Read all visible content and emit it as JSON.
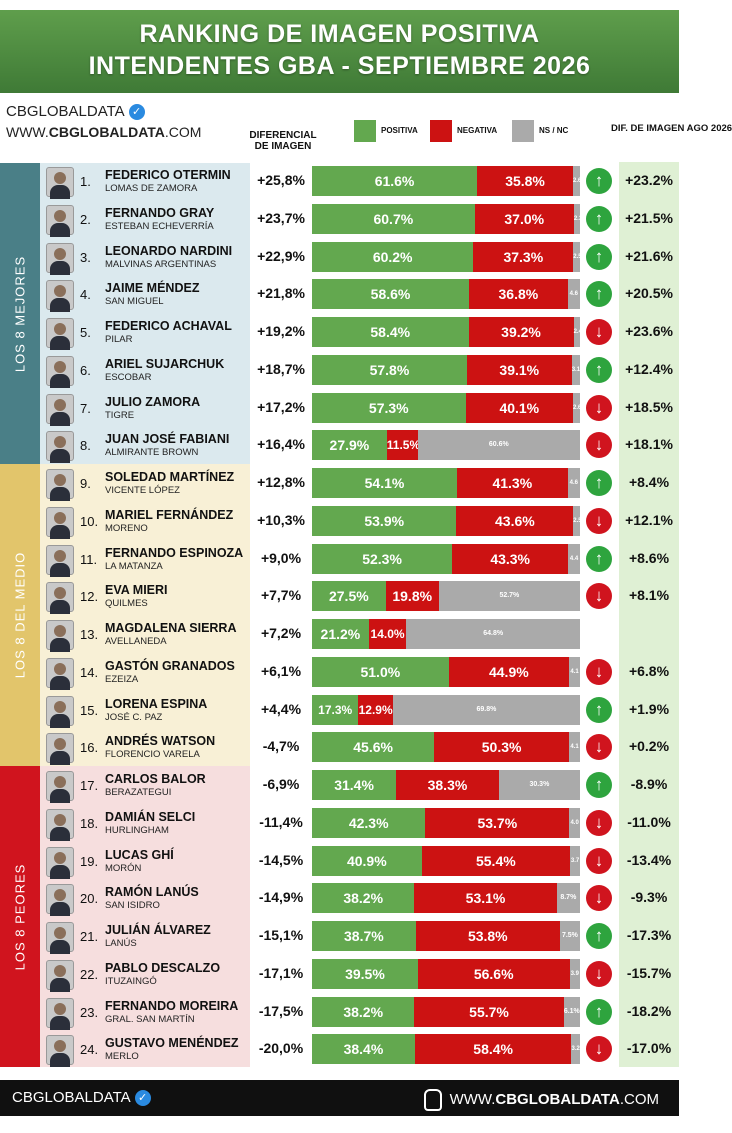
{
  "header": {
    "line1": "RANKING DE IMAGEN POSITIVA",
    "line2": "INTENDENTES GBA - SEPTIEMBRE 2026"
  },
  "brand": {
    "name": "CBGLOBALDATA",
    "url_prefix": "WWW.",
    "url_bold": "CBGLOBALDATA",
    "url_suffix": ".COM",
    "verified_icon": "verified-badge-icon"
  },
  "columns": {
    "diferencial": "DIFERENCIAL DE IMAGEN",
    "legend_pos": "POSITIVA",
    "legend_neg": "NEGATIVA",
    "legend_ns": "NS / NC",
    "dif_agosto": "DIF. DE IMAGEN AGO 2026"
  },
  "colors": {
    "positive": "#63a84f",
    "negative": "#cc1212",
    "ns": "#aaaaaa",
    "up": "#2ea43e",
    "down": "#d0141e",
    "group1": "#4a7f87",
    "group2": "#e2c56b",
    "group3": "#d0141e"
  },
  "groups": [
    "LOS 8 MEJORES",
    "LOS 8 DEL MEDIO",
    "LOS 8 PEORES"
  ],
  "chart_data": {
    "type": "bar",
    "stacked": true,
    "orientation": "horizontal",
    "title": "RANKING DE IMAGEN POSITIVA INTENDENTES GBA - SEPTIEMBRE 2026",
    "series_names": [
      "POSITIVA",
      "NEGATIVA",
      "NS / NC"
    ],
    "rows": [
      {
        "rank": "1.",
        "name": "FEDERICO OTERMIN",
        "muni": "LOMAS DE ZAMORA",
        "diff": "+25,8%",
        "pos": 61.6,
        "neg": 35.8,
        "ns": 2.6,
        "pos_label": "61.6%",
        "neg_label": "35.8%",
        "ns_label": "2.6",
        "arrow": "up",
        "prev": "+23.2%"
      },
      {
        "rank": "2.",
        "name": "FERNANDO GRAY",
        "muni": "ESTEBAN ECHEVERRÍA",
        "diff": "+23,7%",
        "pos": 60.7,
        "neg": 37.0,
        "ns": 2.3,
        "pos_label": "60.7%",
        "neg_label": "37.0%",
        "ns_label": "2.3",
        "arrow": "up",
        "prev": "+21.5%"
      },
      {
        "rank": "3.",
        "name": "LEONARDO NARDINI",
        "muni": "MALVINAS ARGENTINAS",
        "diff": "+22,9%",
        "pos": 60.2,
        "neg": 37.3,
        "ns": 2.5,
        "pos_label": "60.2%",
        "neg_label": "37.3%",
        "ns_label": "2.5",
        "arrow": "up",
        "prev": "+21.6%"
      },
      {
        "rank": "4.",
        "name": "JAIME MÉNDEZ",
        "muni": "SAN MIGUEL",
        "diff": "+21,8%",
        "pos": 58.6,
        "neg": 36.8,
        "ns": 4.6,
        "pos_label": "58.6%",
        "neg_label": "36.8%",
        "ns_label": "4.6",
        "arrow": "up",
        "prev": "+20.5%"
      },
      {
        "rank": "5.",
        "name": "FEDERICO ACHAVAL",
        "muni": "PILAR",
        "diff": "+19,2%",
        "pos": 58.4,
        "neg": 39.2,
        "ns": 2.4,
        "pos_label": "58.4%",
        "neg_label": "39.2%",
        "ns_label": "2.4",
        "arrow": "down",
        "prev": "+23.6%"
      },
      {
        "rank": "6.",
        "name": "ARIEL SUJARCHUK",
        "muni": "ESCOBAR",
        "diff": "+18,7%",
        "pos": 57.8,
        "neg": 39.1,
        "ns": 3.1,
        "pos_label": "57.8%",
        "neg_label": "39.1%",
        "ns_label": "3.1",
        "arrow": "up",
        "prev": "+12.4%"
      },
      {
        "rank": "7.",
        "name": "JULIO ZAMORA",
        "muni": "TIGRE",
        "diff": "+17,2%",
        "pos": 57.3,
        "neg": 40.1,
        "ns": 2.6,
        "pos_label": "57.3%",
        "neg_label": "40.1%",
        "ns_label": "2.6",
        "arrow": "down",
        "prev": "+18.5%"
      },
      {
        "rank": "8.",
        "name": "JUAN JOSÉ FABIANI",
        "muni": "ALMIRANTE BROWN",
        "diff": "+16,4%",
        "pos": 27.9,
        "neg": 11.5,
        "ns": 60.6,
        "pos_label": "27.9%",
        "neg_label": "11.5%",
        "ns_label": "60.6%",
        "arrow": "down",
        "prev": "+18.1%"
      },
      {
        "rank": "9.",
        "name": "SOLEDAD MARTÍNEZ",
        "muni": "VICENTE LÓPEZ",
        "diff": "+12,8%",
        "pos": 54.1,
        "neg": 41.3,
        "ns": 4.6,
        "pos_label": "54.1%",
        "neg_label": "41.3%",
        "ns_label": "4.6",
        "arrow": "up",
        "prev": "+8.4%"
      },
      {
        "rank": "10.",
        "name": "MARIEL FERNÁNDEZ",
        "muni": "MORENO",
        "diff": "+10,3%",
        "pos": 53.9,
        "neg": 43.6,
        "ns": 2.5,
        "pos_label": "53.9%",
        "neg_label": "43.6%",
        "ns_label": "2.5",
        "arrow": "down",
        "prev": "+12.1%"
      },
      {
        "rank": "11.",
        "name": "FERNANDO ESPINOZA",
        "muni": "LA MATANZA",
        "diff": "+9,0%",
        "pos": 52.3,
        "neg": 43.3,
        "ns": 4.4,
        "pos_label": "52.3%",
        "neg_label": "43.3%",
        "ns_label": "4.4",
        "arrow": "up",
        "prev": "+8.6%"
      },
      {
        "rank": "12.",
        "name": "EVA MIERI",
        "muni": "QUILMES",
        "diff": "+7,7%",
        "pos": 27.5,
        "neg": 19.8,
        "ns": 52.7,
        "pos_label": "27.5%",
        "neg_label": "19.8%",
        "ns_label": "52.7%",
        "arrow": "down",
        "prev": "+8.1%"
      },
      {
        "rank": "13.",
        "name": "MAGDALENA SIERRA",
        "muni": "AVELLANEDA",
        "diff": "+7,2%",
        "pos": 21.2,
        "neg": 14.0,
        "ns": 64.8,
        "pos_label": "21.2%",
        "neg_label": "14.0%",
        "ns_label": "64.8%",
        "arrow": "",
        "prev": ""
      },
      {
        "rank": "14.",
        "name": "GASTÓN GRANADOS",
        "muni": "EZEIZA",
        "diff": "+6,1%",
        "pos": 51.0,
        "neg": 44.9,
        "ns": 4.1,
        "pos_label": "51.0%",
        "neg_label": "44.9%",
        "ns_label": "4.1",
        "arrow": "down",
        "prev": "+6.8%"
      },
      {
        "rank": "15.",
        "name": "LORENA ESPINA",
        "muni": "JOSÉ C. PAZ",
        "diff": "+4,4%",
        "pos": 17.3,
        "neg": 12.9,
        "ns": 69.8,
        "pos_label": "17.3%",
        "neg_label": "12.9%",
        "ns_label": "69.8%",
        "arrow": "up",
        "prev": "+1.9%"
      },
      {
        "rank": "16.",
        "name": "ANDRÉS WATSON",
        "muni": "FLORENCIO VARELA",
        "diff": "-4,7%",
        "pos": 45.6,
        "neg": 50.3,
        "ns": 4.1,
        "pos_label": "45.6%",
        "neg_label": "50.3%",
        "ns_label": "4.1",
        "arrow": "down",
        "prev": "+0.2%"
      },
      {
        "rank": "17.",
        "name": "CARLOS BALOR",
        "muni": "BERAZATEGUI",
        "diff": "-6,9%",
        "pos": 31.4,
        "neg": 38.3,
        "ns": 30.3,
        "pos_label": "31.4%",
        "neg_label": "38.3%",
        "ns_label": "30.3%",
        "arrow": "up",
        "prev": "-8.9%"
      },
      {
        "rank": "18.",
        "name": "DAMIÁN SELCI",
        "muni": "HURLINGHAM",
        "diff": "-11,4%",
        "pos": 42.3,
        "neg": 53.7,
        "ns": 4.0,
        "pos_label": "42.3%",
        "neg_label": "53.7%",
        "ns_label": "4.0",
        "arrow": "down",
        "prev": "-11.0%"
      },
      {
        "rank": "19.",
        "name": "LUCAS GHÍ",
        "muni": "MORÓN",
        "diff": "-14,5%",
        "pos": 40.9,
        "neg": 55.4,
        "ns": 3.7,
        "pos_label": "40.9%",
        "neg_label": "55.4%",
        "ns_label": "3.7",
        "arrow": "down",
        "prev": "-13.4%"
      },
      {
        "rank": "20.",
        "name": "RAMÓN LANÚS",
        "muni": "SAN ISIDRO",
        "diff": "-14,9%",
        "pos": 38.2,
        "neg": 53.1,
        "ns": 8.7,
        "pos_label": "38.2%",
        "neg_label": "53.1%",
        "ns_label": "8.7%",
        "arrow": "down",
        "prev": "-9.3%"
      },
      {
        "rank": "21.",
        "name": "JULIÁN ÁLVAREZ",
        "muni": "LANÚS",
        "diff": "-15,1%",
        "pos": 38.7,
        "neg": 53.8,
        "ns": 7.5,
        "pos_label": "38.7%",
        "neg_label": "53.8%",
        "ns_label": "7.5%",
        "arrow": "up",
        "prev": "-17.3%"
      },
      {
        "rank": "22.",
        "name": "PABLO DESCALZO",
        "muni": "ITUZAINGÓ",
        "diff": "-17,1%",
        "pos": 39.5,
        "neg": 56.6,
        "ns": 3.9,
        "pos_label": "39.5%",
        "neg_label": "56.6%",
        "ns_label": "3.9",
        "arrow": "down",
        "prev": "-15.7%"
      },
      {
        "rank": "23.",
        "name": "FERNANDO MOREIRA",
        "muni": "GRAL. SAN MARTÍN",
        "diff": "-17,5%",
        "pos": 38.2,
        "neg": 55.7,
        "ns": 6.1,
        "pos_label": "38.2%",
        "neg_label": "55.7%",
        "ns_label": "6.1%",
        "arrow": "up",
        "prev": "-18.2%"
      },
      {
        "rank": "24.",
        "name": "GUSTAVO MENÉNDEZ",
        "muni": "MERLO",
        "diff": "-20,0%",
        "pos": 38.4,
        "neg": 58.4,
        "ns": 3.2,
        "pos_label": "38.4%",
        "neg_label": "58.4%",
        "ns_label": "3.2",
        "arrow": "down",
        "prev": "-17.0%"
      }
    ]
  },
  "footer": {
    "left": "CBGLOBALDATA",
    "right_prefix": "WWW.",
    "right_bold": "CBGLOBALDATA",
    "right_suffix": ".COM",
    "hand_icon": "pointer-hand-icon"
  }
}
